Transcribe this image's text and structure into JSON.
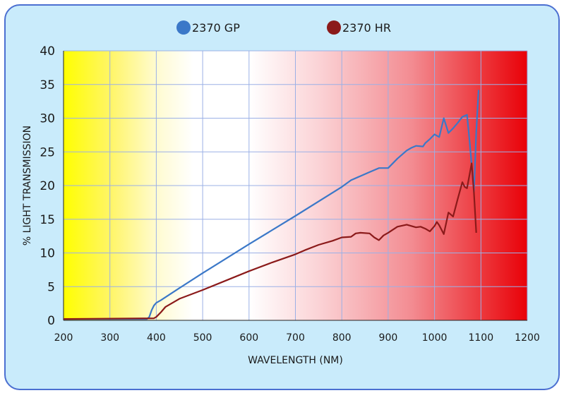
{
  "chart_data": {
    "type": "line",
    "title": "",
    "xlabel": "WAVELENGTH (NM)",
    "ylabel": "% LIGHT TRANSMISSION",
    "xlim": [
      200,
      1200
    ],
    "ylim": [
      0,
      40
    ],
    "xticks": [
      200,
      300,
      400,
      500,
      600,
      700,
      800,
      900,
      1000,
      1100,
      1200
    ],
    "yticks": [
      0,
      5,
      10,
      15,
      20,
      25,
      30,
      35,
      40
    ],
    "grid": true,
    "legend_position": "top-center",
    "background": "spectrum gradient: yellow at 200 nm fading to white near 600 nm, then deepening to red at 1200 nm",
    "series": [
      {
        "name": "2370 GP",
        "color": "#3b78c8",
        "x": [
          200,
          380,
          385,
          390,
          395,
          400,
          410,
          450,
          500,
          600,
          700,
          800,
          820,
          840,
          860,
          880,
          900,
          920,
          940,
          950,
          960,
          975,
          980,
          990,
          1000,
          1010,
          1020,
          1030,
          1040,
          1050,
          1060,
          1070,
          1075,
          1080,
          1085,
          1090,
          1095
        ],
        "y": [
          0.2,
          0.2,
          0.5,
          1.5,
          2.2,
          2.6,
          3.0,
          4.8,
          7.0,
          11.3,
          15.5,
          19.8,
          20.8,
          21.4,
          22.0,
          22.6,
          22.6,
          24.0,
          25.2,
          25.6,
          25.9,
          25.8,
          26.3,
          26.9,
          27.6,
          27.2,
          30.0,
          27.8,
          28.5,
          29.3,
          30.2,
          30.5,
          27.0,
          23.0,
          19.0,
          28.0,
          34.2
        ]
      },
      {
        "name": "2370 HR",
        "color": "#8b1a1a",
        "x": [
          200,
          395,
          400,
          410,
          420,
          450,
          500,
          550,
          600,
          650,
          700,
          720,
          750,
          780,
          800,
          820,
          830,
          840,
          860,
          870,
          880,
          890,
          900,
          920,
          940,
          960,
          970,
          980,
          990,
          1000,
          1005,
          1010,
          1020,
          1030,
          1040,
          1050,
          1060,
          1065,
          1070,
          1080,
          1085,
          1090
        ],
        "y": [
          0.2,
          0.3,
          0.5,
          1.2,
          2.0,
          3.2,
          4.5,
          5.9,
          7.3,
          8.6,
          9.8,
          10.4,
          11.2,
          11.8,
          12.3,
          12.4,
          12.9,
          13.0,
          12.9,
          12.3,
          11.9,
          12.6,
          13.0,
          13.9,
          14.2,
          13.8,
          13.9,
          13.6,
          13.2,
          14.0,
          14.6,
          14.1,
          12.8,
          16.0,
          15.4,
          18.0,
          20.5,
          19.8,
          19.6,
          23.3,
          19.0,
          13.0
        ]
      }
    ]
  }
}
